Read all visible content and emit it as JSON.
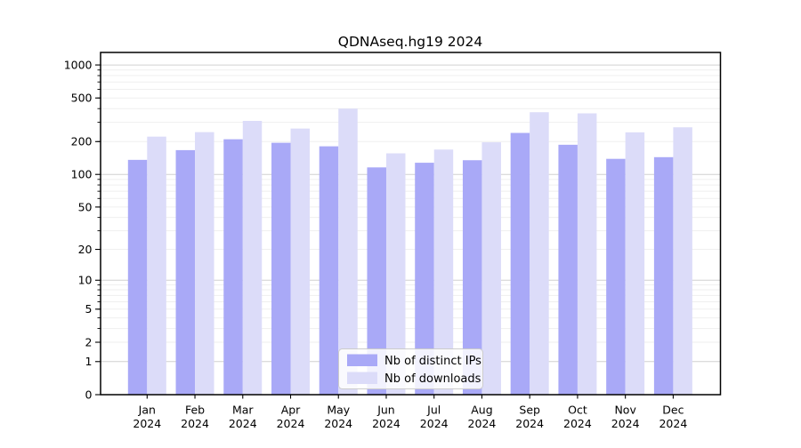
{
  "chart_data": {
    "type": "bar",
    "title": "QDNAseq.hg19 2024",
    "scale": "log1p",
    "xlabel": "",
    "ylabel": "",
    "ylim": [
      0,
      1300
    ],
    "grid": "on",
    "yticks": [
      1000,
      500,
      200,
      100,
      50,
      20,
      10,
      5,
      2,
      1,
      0
    ],
    "grid_major": [
      1,
      10,
      100,
      1000
    ],
    "grid_minor": [
      2,
      3,
      4,
      5,
      6,
      7,
      8,
      9,
      20,
      30,
      40,
      50,
      60,
      70,
      80,
      90,
      200,
      300,
      400,
      500,
      600,
      700,
      800,
      900
    ],
    "categories": [
      {
        "month": "Jan",
        "year": "2024"
      },
      {
        "month": "Feb",
        "year": "2024"
      },
      {
        "month": "Mar",
        "year": "2024"
      },
      {
        "month": "Apr",
        "year": "2024"
      },
      {
        "month": "May",
        "year": "2024"
      },
      {
        "month": "Jun",
        "year": "2024"
      },
      {
        "month": "Jul",
        "year": "2024"
      },
      {
        "month": "Aug",
        "year": "2024"
      },
      {
        "month": "Sep",
        "year": "2024"
      },
      {
        "month": "Oct",
        "year": "2024"
      },
      {
        "month": "Nov",
        "year": "2024"
      },
      {
        "month": "Dec",
        "year": "2024"
      }
    ],
    "series": [
      {
        "name": "Nb of distinct IPs",
        "color": "#a9a9f7",
        "values": [
          136,
          167,
          210,
          195,
          181,
          116,
          128,
          135,
          240,
          187,
          139,
          144
        ]
      },
      {
        "name": "Nb of downloads",
        "color": "#dcdcf9",
        "values": [
          222,
          244,
          309,
          263,
          400,
          156,
          169,
          197,
          371,
          362,
          243,
          270
        ]
      }
    ],
    "legend": {
      "position": "bottom-center-inside",
      "border_color": "#cccccc",
      "background": "#ffffff"
    },
    "colors": {
      "frame": "#000000",
      "grid_major": "#d0d0d0",
      "grid_minor": "#efefef",
      "text": "#000000"
    }
  }
}
